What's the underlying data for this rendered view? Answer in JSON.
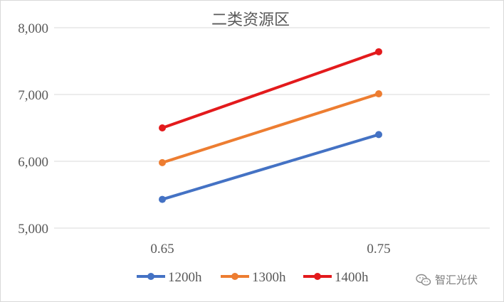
{
  "chart_data": {
    "type": "line",
    "title": "二类资源区",
    "categories": [
      "0.65",
      "0.75"
    ],
    "series": [
      {
        "name": "1200h",
        "color": "#4472c4",
        "values": [
          5430,
          6400
        ]
      },
      {
        "name": "1300h",
        "color": "#ed7d31",
        "values": [
          5980,
          7010
        ]
      },
      {
        "name": "1400h",
        "color": "#e31a1c",
        "values": [
          6500,
          7640
        ]
      }
    ],
    "ylim": [
      5000,
      8000
    ],
    "y_ticks": [
      5000,
      6000,
      7000,
      8000
    ],
    "y_tick_labels": [
      "5,000",
      "6,000",
      "7,000",
      "8,000"
    ],
    "grid": true,
    "legend_position": "bottom"
  },
  "watermark": {
    "icon": "wechat-icon",
    "text": "智汇光伏"
  }
}
